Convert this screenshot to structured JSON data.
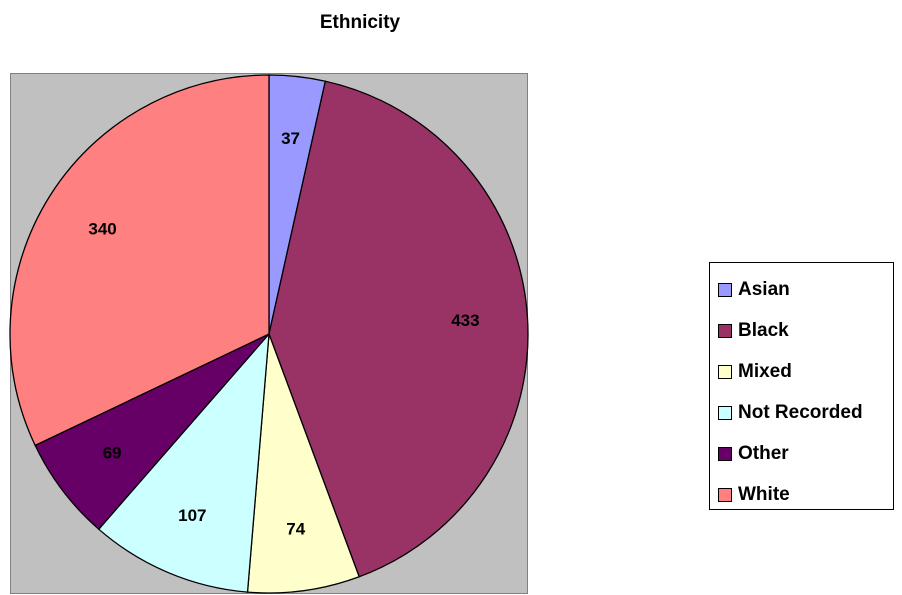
{
  "chart_data": {
    "type": "pie",
    "title": "Ethnicity",
    "categories": [
      "Asian",
      "Black",
      "Mixed",
      "Not Recorded",
      "Other",
      "White"
    ],
    "values": [
      37,
      433,
      74,
      107,
      69,
      340
    ],
    "colors": [
      "#9999ff",
      "#993366",
      "#ffffcc",
      "#ccffff",
      "#660066",
      "#ff8080"
    ],
    "legend_position": "right",
    "data_labels": true
  }
}
